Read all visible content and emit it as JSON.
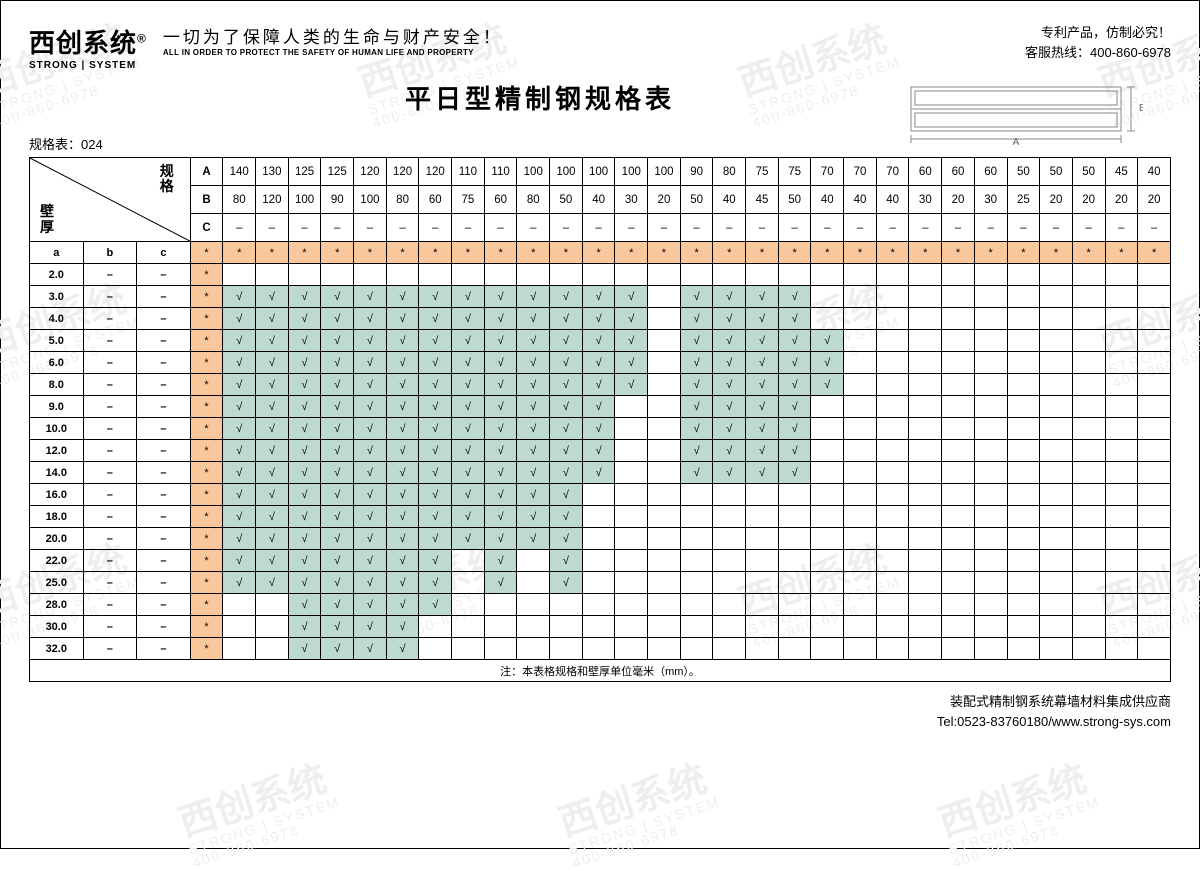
{
  "branding": {
    "logo_cn": "西创系统",
    "logo_mark": "®",
    "logo_en": "STRONG | SYSTEM",
    "slogan_cn": "一切为了保障人类的生命与财产安全！",
    "slogan_en": "ALL IN ORDER TO PROTECT THE SAFETY OF HUMAN LIFE AND PROPERTY"
  },
  "top_right": {
    "line1": "专利产品，仿制必究！",
    "line2": "客服热线：400-860-6978"
  },
  "title": "平日型精制钢规格表",
  "table_code": "规格表：024",
  "labels": {
    "spec": "规格",
    "thickness": "壁厚",
    "a": "a",
    "b": "b",
    "c": "c",
    "A": "A",
    "B": "B",
    "C": "C",
    "dash": "–",
    "star": "*",
    "check": "√"
  },
  "columns": {
    "A": [
      "140",
      "130",
      "125",
      "125",
      "120",
      "120",
      "120",
      "110",
      "110",
      "100",
      "100",
      "100",
      "100",
      "100",
      "90",
      "80",
      "75",
      "75",
      "70",
      "70",
      "70",
      "60",
      "60",
      "60",
      "50",
      "50",
      "50",
      "45",
      "40"
    ],
    "B": [
      "80",
      "120",
      "100",
      "90",
      "100",
      "80",
      "60",
      "75",
      "60",
      "80",
      "50",
      "40",
      "30",
      "20",
      "50",
      "40",
      "45",
      "50",
      "40",
      "40",
      "40",
      "30",
      "20",
      "30",
      "25",
      "20",
      "20",
      "20",
      "20"
    ],
    "C": [
      "–",
      "–",
      "–",
      "–",
      "–",
      "–",
      "–",
      "–",
      "–",
      "–",
      "–",
      "–",
      "–",
      "–",
      "–",
      "–",
      "–",
      "–",
      "–",
      "–",
      "–",
      "–",
      "–",
      "–",
      "–",
      "–",
      "–",
      "–",
      "–"
    ]
  },
  "colors": {
    "orange": "#f8c79c",
    "teal": "#bed9d2",
    "border": "#000000",
    "watermark": "#eeeeee"
  },
  "rows": [
    {
      "a": "2.0",
      "cells": [
        0,
        0,
        0,
        0,
        0,
        0,
        0,
        0,
        0,
        0,
        0,
        0,
        0,
        0,
        0,
        0,
        0,
        0,
        0,
        0,
        0,
        0,
        0,
        0,
        0,
        0,
        0,
        0,
        0
      ]
    },
    {
      "a": "3.0",
      "cells": [
        1,
        1,
        1,
        1,
        1,
        1,
        1,
        1,
        1,
        1,
        1,
        1,
        1,
        0,
        1,
        1,
        1,
        1,
        0,
        0,
        0,
        0,
        0,
        0,
        0,
        0,
        0,
        0,
        0
      ]
    },
    {
      "a": "4.0",
      "cells": [
        1,
        1,
        1,
        1,
        1,
        1,
        1,
        1,
        1,
        1,
        1,
        1,
        1,
        0,
        1,
        1,
        1,
        1,
        0,
        0,
        0,
        0,
        0,
        0,
        0,
        0,
        0,
        0,
        0
      ]
    },
    {
      "a": "5.0",
      "cells": [
        1,
        1,
        1,
        1,
        1,
        1,
        1,
        1,
        1,
        1,
        1,
        1,
        1,
        0,
        1,
        1,
        1,
        1,
        1,
        0,
        0,
        0,
        0,
        0,
        0,
        0,
        0,
        0,
        0
      ]
    },
    {
      "a": "6.0",
      "cells": [
        1,
        1,
        1,
        1,
        1,
        1,
        1,
        1,
        1,
        1,
        1,
        1,
        1,
        0,
        1,
        1,
        1,
        1,
        1,
        0,
        0,
        0,
        0,
        0,
        0,
        0,
        0,
        0,
        0
      ]
    },
    {
      "a": "8.0",
      "cells": [
        1,
        1,
        1,
        1,
        1,
        1,
        1,
        1,
        1,
        1,
        1,
        1,
        1,
        0,
        1,
        1,
        1,
        1,
        1,
        0,
        0,
        0,
        0,
        0,
        0,
        0,
        0,
        0,
        0
      ]
    },
    {
      "a": "9.0",
      "cells": [
        1,
        1,
        1,
        1,
        1,
        1,
        1,
        1,
        1,
        1,
        1,
        1,
        0,
        0,
        1,
        1,
        1,
        1,
        0,
        0,
        0,
        0,
        0,
        0,
        0,
        0,
        0,
        0,
        0
      ]
    },
    {
      "a": "10.0",
      "cells": [
        1,
        1,
        1,
        1,
        1,
        1,
        1,
        1,
        1,
        1,
        1,
        1,
        0,
        0,
        1,
        1,
        1,
        1,
        0,
        0,
        0,
        0,
        0,
        0,
        0,
        0,
        0,
        0,
        0
      ]
    },
    {
      "a": "12.0",
      "cells": [
        1,
        1,
        1,
        1,
        1,
        1,
        1,
        1,
        1,
        1,
        1,
        1,
        0,
        0,
        1,
        1,
        1,
        1,
        0,
        0,
        0,
        0,
        0,
        0,
        0,
        0,
        0,
        0,
        0
      ]
    },
    {
      "a": "14.0",
      "cells": [
        1,
        1,
        1,
        1,
        1,
        1,
        1,
        1,
        1,
        1,
        1,
        1,
        0,
        0,
        1,
        1,
        1,
        1,
        0,
        0,
        0,
        0,
        0,
        0,
        0,
        0,
        0,
        0,
        0
      ]
    },
    {
      "a": "16.0",
      "cells": [
        1,
        1,
        1,
        1,
        1,
        1,
        1,
        1,
        1,
        1,
        1,
        0,
        0,
        0,
        0,
        0,
        0,
        0,
        0,
        0,
        0,
        0,
        0,
        0,
        0,
        0,
        0,
        0,
        0
      ]
    },
    {
      "a": "18.0",
      "cells": [
        1,
        1,
        1,
        1,
        1,
        1,
        1,
        1,
        1,
        1,
        1,
        0,
        0,
        0,
        0,
        0,
        0,
        0,
        0,
        0,
        0,
        0,
        0,
        0,
        0,
        0,
        0,
        0,
        0
      ]
    },
    {
      "a": "20.0",
      "cells": [
        1,
        1,
        1,
        1,
        1,
        1,
        1,
        1,
        1,
        1,
        1,
        0,
        0,
        0,
        0,
        0,
        0,
        0,
        0,
        0,
        0,
        0,
        0,
        0,
        0,
        0,
        0,
        0,
        0
      ]
    },
    {
      "a": "22.0",
      "cells": [
        1,
        1,
        1,
        1,
        1,
        1,
        1,
        0,
        1,
        0,
        1,
        0,
        0,
        0,
        0,
        0,
        0,
        0,
        0,
        0,
        0,
        0,
        0,
        0,
        0,
        0,
        0,
        0,
        0
      ]
    },
    {
      "a": "25.0",
      "cells": [
        1,
        1,
        1,
        1,
        1,
        1,
        1,
        0,
        1,
        0,
        1,
        0,
        0,
        0,
        0,
        0,
        0,
        0,
        0,
        0,
        0,
        0,
        0,
        0,
        0,
        0,
        0,
        0,
        0
      ]
    },
    {
      "a": "28.0",
      "cells": [
        0,
        0,
        1,
        1,
        1,
        1,
        1,
        0,
        0,
        0,
        0,
        0,
        0,
        0,
        0,
        0,
        0,
        0,
        0,
        0,
        0,
        0,
        0,
        0,
        0,
        0,
        0,
        0,
        0
      ]
    },
    {
      "a": "30.0",
      "cells": [
        0,
        0,
        1,
        1,
        1,
        1,
        0,
        0,
        0,
        0,
        0,
        0,
        0,
        0,
        0,
        0,
        0,
        0,
        0,
        0,
        0,
        0,
        0,
        0,
        0,
        0,
        0,
        0,
        0
      ]
    },
    {
      "a": "32.0",
      "cells": [
        0,
        0,
        1,
        1,
        1,
        1,
        0,
        0,
        0,
        0,
        0,
        0,
        0,
        0,
        0,
        0,
        0,
        0,
        0,
        0,
        0,
        0,
        0,
        0,
        0,
        0,
        0,
        0,
        0
      ]
    }
  ],
  "note": "注：本表格规格和壁厚单位毫米（mm）。",
  "footer": {
    "line1": "装配式精制钢系统幕墙材料集成供应商",
    "line2": "Tel:0523-83760180/www.strong-sys.com"
  },
  "diagram": {
    "A_label": "A",
    "B_label": "B"
  },
  "watermark": {
    "text": "西创系统",
    "sub": "STRONG | SYSTEM",
    "phone": "400-860-6978"
  }
}
